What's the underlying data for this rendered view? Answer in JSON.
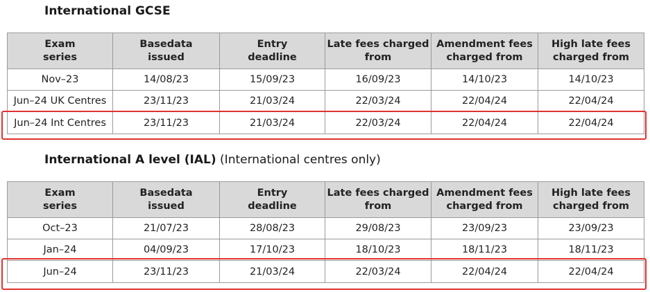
{
  "gcse": {
    "title_bold": "International GCSE",
    "title_note": "",
    "headers": [
      "Exam series",
      "Basedata issued",
      "Entry deadline",
      "Late fees charged from",
      "Amendment fees charged from",
      "High late fees charged from"
    ],
    "header_lines": [
      [
        "Exam",
        "series"
      ],
      [
        "Basedata",
        "issued"
      ],
      [
        "Entry",
        "deadline"
      ],
      [
        "Late fees charged",
        "from"
      ],
      [
        "Amendment fees",
        "charged from"
      ],
      [
        "High late fees",
        "charged from"
      ]
    ],
    "rows": [
      [
        "Nov–23",
        "14/08/23",
        "15/09/23",
        "16/09/23",
        "14/10/23",
        "14/10/23"
      ],
      [
        "Jun–24 UK Centres",
        "23/11/23",
        "21/03/24",
        "22/03/24",
        "22/04/24",
        "22/04/24"
      ],
      [
        "Jun–24 Int Centres",
        "23/11/23",
        "21/03/24",
        "22/03/24",
        "22/04/24",
        "22/04/24"
      ]
    ],
    "highlighted_row": 2
  },
  "ial": {
    "title_bold": "International A level (IAL)",
    "title_note": "(International centres only)",
    "headers": [
      "Exam series",
      "Basedata issued",
      "Entry deadline",
      "Late fees charged from",
      "Amendment fees charged from",
      "High late fees charged from"
    ],
    "header_lines": [
      [
        "Exam",
        "series"
      ],
      [
        "Basedata",
        "issued"
      ],
      [
        "Entry",
        "deadline"
      ],
      [
        "Late fees charged",
        "from"
      ],
      [
        "Amendment fees",
        "charged from"
      ],
      [
        "High late fees",
        "charged from"
      ]
    ],
    "rows": [
      [
        "Oct–23",
        "21/07/23",
        "28/08/23",
        "29/08/23",
        "23/09/23",
        "23/09/23"
      ],
      [
        "Jan–24",
        "04/09/23",
        "17/10/23",
        "18/10/23",
        "18/11/23",
        "18/11/23"
      ],
      [
        "Jun–24",
        "23/11/23",
        "21/03/24",
        "22/03/24",
        "22/04/24",
        "22/04/24"
      ]
    ],
    "highlighted_row": 2
  },
  "colors": {
    "header_bg": "#d9d9d9",
    "border": "#9a9a9a",
    "highlight": "#e0322f"
  }
}
